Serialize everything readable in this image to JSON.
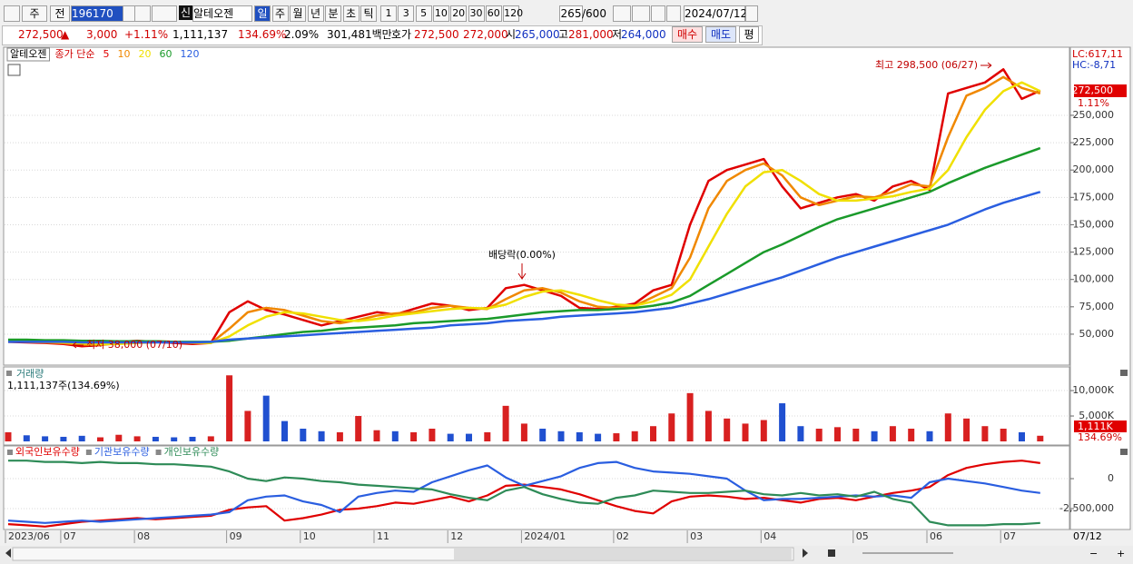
{
  "toolbar": {
    "period_type": "주",
    "prev": "전",
    "code": "196170",
    "new_badge": "신",
    "name": "알테오젠",
    "units": [
      "일",
      "주",
      "월",
      "년",
      "분",
      "초",
      "틱"
    ],
    "intervals": [
      "1",
      "3",
      "5",
      "10",
      "20",
      "30",
      "60",
      "120"
    ],
    "count": "265",
    "max": "/600",
    "date": "2024/07/12"
  },
  "quote": {
    "price": "272,500",
    "arrow": "▲",
    "change": "3,000",
    "rate": "+1.11%",
    "volume": "1,111,137",
    "vol_ratio": "134.69%",
    "turnover": "2.09%",
    "amount": "301,481백만",
    "ask_label": "호가",
    "ask": "272,500",
    "bid": "272,000",
    "open_label": "시",
    "open": "265,000",
    "high_label": "고",
    "high": "281,000",
    "low_label": "저",
    "low": "264,000",
    "buy": "매수",
    "sell": "매도",
    "avg": "평"
  },
  "chart_data": [
    {
      "type": "line",
      "title": "알테오젠",
      "legend_prefix": "종가 단순",
      "categories": [
        "2023/06",
        null,
        null,
        "07",
        null,
        null,
        null,
        "08",
        null,
        null,
        null,
        null,
        "09",
        null,
        null,
        null,
        "10",
        null,
        null,
        null,
        "11",
        null,
        null,
        null,
        "12",
        null,
        null,
        null,
        "2024/01",
        null,
        null,
        null,
        null,
        "02",
        null,
        null,
        null,
        "03",
        null,
        null,
        null,
        "04",
        null,
        null,
        null,
        null,
        "05",
        null,
        null,
        null,
        "06",
        null,
        null,
        null,
        "07",
        null,
        null
      ],
      "series": [
        {
          "name": "5",
          "color": "#e00000",
          "values": [
            43000,
            42500,
            42000,
            41000,
            39000,
            40000,
            43000,
            44000,
            43000,
            42000,
            41000,
            42000,
            70000,
            80000,
            72000,
            68000,
            63000,
            58000,
            62000,
            66000,
            70000,
            68000,
            73000,
            78000,
            76000,
            72000,
            74000,
            92000,
            95000,
            90000,
            85000,
            74000,
            73000,
            75000,
            78000,
            90000,
            95000,
            150000,
            190000,
            200000,
            205000,
            210000,
            185000,
            165000,
            170000,
            175000,
            178000,
            172000,
            185000,
            190000,
            182000,
            270000,
            275000,
            280000,
            292000,
            265000,
            272500
          ]
        },
        {
          "name": "10",
          "color": "#f08800",
          "values": [
            43500,
            43000,
            42500,
            41800,
            40500,
            40200,
            41500,
            43000,
            43500,
            43000,
            42000,
            41800,
            55000,
            70000,
            74000,
            72000,
            67000,
            62000,
            60000,
            63000,
            67000,
            69000,
            70000,
            74000,
            76000,
            74000,
            73000,
            82000,
            90000,
            92000,
            88000,
            80000,
            75000,
            74000,
            76000,
            84000,
            92000,
            120000,
            165000,
            190000,
            200000,
            206000,
            195000,
            175000,
            168000,
            172000,
            176000,
            175000,
            180000,
            187000,
            185000,
            230000,
            268000,
            275000,
            285000,
            275000,
            270000
          ]
        },
        {
          "name": "20",
          "color": "#f0e000",
          "values": [
            44000,
            43500,
            43000,
            42500,
            41500,
            41000,
            41000,
            42000,
            42500,
            43000,
            42500,
            42000,
            48000,
            58000,
            66000,
            70000,
            69000,
            66000,
            63000,
            62000,
            64000,
            67000,
            69000,
            71000,
            73000,
            74000,
            73500,
            77000,
            84000,
            89000,
            90000,
            86000,
            81000,
            77000,
            76000,
            80000,
            86000,
            100000,
            130000,
            160000,
            185000,
            198000,
            200000,
            190000,
            178000,
            172000,
            172000,
            174000,
            176000,
            180000,
            183000,
            200000,
            230000,
            255000,
            272000,
            280000,
            272000
          ]
        },
        {
          "name": "60",
          "color": "#1a9a2a",
          "values": [
            45000,
            45000,
            44500,
            44500,
            44000,
            44000,
            43500,
            43500,
            43500,
            43000,
            43000,
            43000,
            44000,
            46000,
            48000,
            50000,
            52000,
            53000,
            55000,
            56000,
            57000,
            58000,
            60000,
            61000,
            62000,
            63000,
            64000,
            66000,
            68000,
            70000,
            71000,
            72000,
            72000,
            73000,
            74000,
            76000,
            79000,
            85000,
            95000,
            105000,
            115000,
            125000,
            132000,
            140000,
            148000,
            155000,
            160000,
            165000,
            170000,
            175000,
            180000,
            188000,
            195000,
            202000,
            208000,
            214000,
            220000
          ]
        },
        {
          "name": "120",
          "color": "#2a5ee0",
          "values": [
            43000,
            43000,
            43000,
            43000,
            42500,
            42500,
            42500,
            42500,
            42500,
            42500,
            42500,
            43000,
            45000,
            46000,
            47000,
            48000,
            49000,
            50000,
            51000,
            52000,
            53000,
            54000,
            55000,
            56000,
            58000,
            59000,
            60000,
            62000,
            63000,
            64000,
            66000,
            67000,
            68000,
            69000,
            70000,
            72000,
            74000,
            78000,
            82000,
            87000,
            92000,
            97000,
            102000,
            108000,
            114000,
            120000,
            125000,
            130000,
            135000,
            140000,
            145000,
            150000,
            157000,
            164000,
            170000,
            175000,
            180000
          ]
        }
      ],
      "ylim": [
        23400,
        312200
      ],
      "yticks": [
        {
          "value": 50000,
          "label": "50,000"
        },
        {
          "value": 75000,
          "label": "75,000"
        },
        {
          "value": 100000,
          "label": "100,000"
        },
        {
          "value": 125000,
          "label": "125,000"
        },
        {
          "value": 150000,
          "label": "150,000"
        },
        {
          "value": 175000,
          "label": "175,000"
        },
        {
          "value": 200000,
          "label": "200,000"
        },
        {
          "value": 225000,
          "label": "225,000"
        },
        {
          "value": 250000,
          "label": "250,000"
        }
      ],
      "grid": true,
      "annotations": {
        "high": "최고 298,500 (06/27)",
        "low": "최저 38,000 (07/10)",
        "dividend": "배당락(0.00%)",
        "lc": "LC:617,11",
        "hc": "HC:-8,71",
        "price_tag": "272,500",
        "rate_tag": "1.11%"
      }
    },
    {
      "type": "bar",
      "title": "거래량",
      "subtitle": "1,111,137주(134.69%)",
      "up_color": "#d82020",
      "down_color": "#2050d0",
      "values": [
        1800000,
        1200000,
        1000000,
        900000,
        1100000,
        800000,
        1300000,
        1000000,
        900000,
        800000,
        900000,
        1000000,
        13000000,
        6000000,
        9000000,
        4000000,
        2500000,
        2000000,
        1800000,
        5000000,
        2200000,
        2000000,
        1800000,
        2500000,
        1500000,
        1500000,
        1800000,
        7000000,
        3500000,
        2500000,
        2000000,
        1800000,
        1500000,
        1600000,
        2000000,
        3000000,
        5500000,
        9500000,
        6000000,
        4500000,
        3500000,
        4200000,
        7500000,
        3000000,
        2500000,
        2800000,
        2500000,
        2000000,
        3000000,
        2500000,
        2000000,
        5500000,
        4500000,
        3000000,
        2500000,
        1800000,
        1111137
      ],
      "ylim": [
        0,
        14300000
      ],
      "yticks": [
        {
          "value": 5000000,
          "label": "5,000K"
        },
        {
          "value": 10000000,
          "label": "10,000K"
        }
      ],
      "annotations": {
        "value_tag": "1,111K",
        "ratio_tag": "134.69%"
      }
    },
    {
      "type": "line",
      "series": [
        {
          "name": "외국인보유수량",
          "color": "#e00000",
          "values": [
            -3800000,
            -3900000,
            -4000000,
            -3800000,
            -3600000,
            -3500000,
            -3400000,
            -3300000,
            -3400000,
            -3300000,
            -3200000,
            -3100000,
            -2600000,
            -2400000,
            -2300000,
            -3500000,
            -3300000,
            -3000000,
            -2600000,
            -2500000,
            -2300000,
            -2000000,
            -2100000,
            -1800000,
            -1500000,
            -1900000,
            -1400000,
            -600000,
            -500000,
            -700000,
            -900000,
            -1300000,
            -1800000,
            -2300000,
            -2700000,
            -2900000,
            -1900000,
            -1500000,
            -1400000,
            -1500000,
            -1700000,
            -1600000,
            -1800000,
            -2000000,
            -1700000,
            -1600000,
            -1800000,
            -1500000,
            -1200000,
            -1000000,
            -700000,
            300000,
            900000,
            1200000,
            1400000,
            1500000,
            1300000
          ]
        },
        {
          "name": "기관보유수량",
          "color": "#2a5ee0",
          "values": [
            -3500000,
            -3600000,
            -3700000,
            -3600000,
            -3500000,
            -3600000,
            -3500000,
            -3400000,
            -3300000,
            -3200000,
            -3100000,
            -3000000,
            -2800000,
            -1800000,
            -1500000,
            -1400000,
            -1900000,
            -2200000,
            -2800000,
            -1500000,
            -1200000,
            -1000000,
            -1100000,
            -300000,
            200000,
            700000,
            1100000,
            100000,
            -600000,
            -200000,
            200000,
            900000,
            1300000,
            1400000,
            900000,
            600000,
            500000,
            400000,
            200000,
            0,
            -1000000,
            -1800000,
            -1700000,
            -1700000,
            -1600000,
            -1500000,
            -1400000,
            -1500000,
            -1400000,
            -1600000,
            -300000,
            0,
            -200000,
            -400000,
            -700000,
            -1000000,
            -1200000
          ]
        },
        {
          "name": "개인보유수량",
          "color": "#2e8b57",
          "values": [
            1500000,
            1500000,
            1400000,
            1400000,
            1300000,
            1400000,
            1300000,
            1300000,
            1200000,
            1200000,
            1100000,
            1000000,
            600000,
            0,
            -200000,
            100000,
            0,
            -200000,
            -300000,
            -500000,
            -600000,
            -700000,
            -800000,
            -900000,
            -1300000,
            -1600000,
            -1800000,
            -1000000,
            -700000,
            -1300000,
            -1700000,
            -2000000,
            -2100000,
            -1600000,
            -1400000,
            -1000000,
            -1100000,
            -1200000,
            -1200000,
            -1100000,
            -1000000,
            -1300000,
            -1400000,
            -1200000,
            -1400000,
            -1300000,
            -1500000,
            -1100000,
            -1700000,
            -2000000,
            -3600000,
            -3900000,
            -3900000,
            -3900000,
            -3800000,
            -3800000,
            -3700000
          ]
        }
      ],
      "ylim": [
        -4170000,
        2580000
      ],
      "yticks": [
        0,
        {
          "value": -2500000,
          "label": "-2,500,000"
        }
      ],
      "annotations": {
        "end_date": "07/12"
      }
    }
  ]
}
